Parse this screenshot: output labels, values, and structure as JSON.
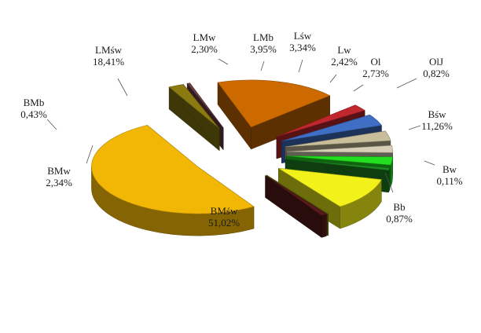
{
  "chart_data": {
    "type": "pie",
    "style": "3d-exploded",
    "title": "",
    "slices": [
      {
        "label": "BMśw",
        "value": 51.02,
        "value_text": "51,02%",
        "color": "#f2b705"
      },
      {
        "label": "BMw",
        "value": 2.34,
        "value_text": "2,34%",
        "color": "#8a7a10"
      },
      {
        "label": "BMb",
        "value": 0.43,
        "value_text": "0,43%",
        "color": "#6b3f45"
      },
      {
        "label": "LMśw",
        "value": 18.41,
        "value_text": "18,41%",
        "color": "#cc6a00"
      },
      {
        "label": "LMw",
        "value": 2.3,
        "value_text": "2,30%",
        "color": "#c0282e"
      },
      {
        "label": "LMb",
        "value": 3.95,
        "value_text": "3,95%",
        "color": "#3f6fc4"
      },
      {
        "label": "Lśw",
        "value": 3.34,
        "value_text": "3,34%",
        "color": "#c8bf9a"
      },
      {
        "label": "Lw",
        "value": 2.42,
        "value_text": "2,42%",
        "color": "#d6cfb6"
      },
      {
        "label": "Ol",
        "value": 2.73,
        "value_text": "2,73%",
        "color": "#22e020"
      },
      {
        "label": "OlJ",
        "value": 0.82,
        "value_text": "0,82%",
        "color": "#1e8a22"
      },
      {
        "label": "Bśw",
        "value": 11.26,
        "value_text": "11,26%",
        "color": "#f2f21a"
      },
      {
        "label": "Bw",
        "value": 0.11,
        "value_text": "0,11%",
        "color": "#8a8a12"
      },
      {
        "label": "Bb",
        "value": 0.87,
        "value_text": "0,87%",
        "color": "#5a1a1a"
      }
    ],
    "legend": "none"
  }
}
